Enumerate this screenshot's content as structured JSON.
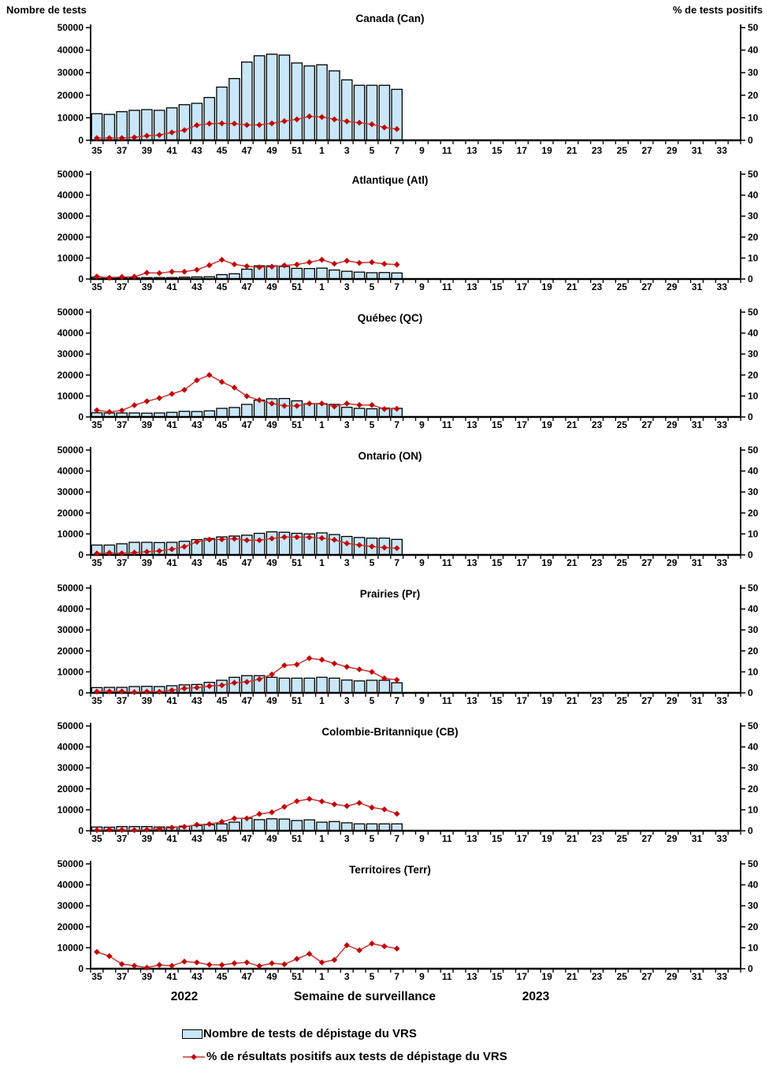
{
  "header": {
    "left_axis_title": "Nombre de tests",
    "right_axis_title": "% de tests positifs"
  },
  "footer": {
    "year_left": "2022",
    "x_axis_title": "Semaine de surveillance",
    "year_right": "2023"
  },
  "legend": {
    "tests_label": "Nombre de tests de dépistage du VRS",
    "pct_label": "% de résultats positifs aux tests de dépistage du VRS"
  },
  "colors": {
    "bar_fill": "#C9E7F8",
    "bar_stroke": "#000000",
    "line": "#CC3333",
    "marker": "#C00000",
    "axis": "#000000"
  },
  "chart_data": {
    "type": "bar+line",
    "x_categories": [
      35,
      36,
      37,
      38,
      39,
      40,
      41,
      42,
      43,
      44,
      45,
      46,
      47,
      48,
      49,
      50,
      51,
      52,
      1,
      2,
      3,
      4,
      5,
      6,
      7,
      8,
      9,
      10,
      11,
      12,
      13,
      14,
      15,
      16,
      17,
      18,
      19,
      20,
      21,
      22,
      23,
      24,
      25,
      26,
      27,
      28,
      29,
      30,
      31,
      32,
      33,
      34
    ],
    "x_tick_labels": [
      35,
      37,
      39,
      41,
      43,
      45,
      47,
      49,
      51,
      1,
      3,
      5,
      7,
      9,
      11,
      13,
      15,
      17,
      19,
      21,
      23,
      25,
      27,
      29,
      31,
      33
    ],
    "weeks_with_data": [
      35,
      36,
      37,
      38,
      39,
      40,
      41,
      42,
      43,
      44,
      45,
      46,
      47,
      48,
      49,
      50,
      51,
      52,
      1,
      2,
      3,
      4,
      5,
      6,
      7
    ],
    "left_axis": {
      "title": "Nombre de tests",
      "range": [
        0,
        50000
      ],
      "ticks": [
        0,
        10000,
        20000,
        30000,
        40000,
        50000
      ]
    },
    "right_axis": {
      "title": "% de tests positifs",
      "range": [
        0,
        50
      ],
      "ticks": [
        0,
        10,
        20,
        30,
        40,
        50
      ]
    },
    "grid": false,
    "legend_position": "bottom-left",
    "panels": [
      {
        "title": "Canada (Can)",
        "tests": [
          11800,
          11500,
          12700,
          13300,
          13600,
          13300,
          14400,
          15800,
          16400,
          19000,
          23600,
          27400,
          34700,
          37500,
          38200,
          37800,
          34300,
          33000,
          33500,
          30800,
          26800,
          24400,
          24400,
          24400,
          22600
        ],
        "pct_positive": [
          1.0,
          1.0,
          1.0,
          1.3,
          2.0,
          2.3,
          3.5,
          4.5,
          6.7,
          7.4,
          7.5,
          7.4,
          6.8,
          6.8,
          7.5,
          8.5,
          9.3,
          10.6,
          10.3,
          9.3,
          8.4,
          7.8,
          7.1,
          5.7,
          5.0
        ]
      },
      {
        "title": "Atlantique (Atl)",
        "tests": [
          900,
          800,
          600,
          600,
          700,
          700,
          700,
          900,
          1000,
          1100,
          2100,
          2500,
          4700,
          6300,
          6300,
          6000,
          5100,
          5000,
          5200,
          4300,
          3700,
          3300,
          3000,
          3100,
          2900
        ],
        "pct_positive": [
          1.2,
          0.6,
          1.0,
          1.1,
          3.0,
          2.8,
          3.5,
          3.5,
          4.4,
          6.6,
          9.2,
          7.0,
          6.1,
          5.6,
          5.9,
          6.5,
          6.9,
          8.0,
          9.2,
          7.3,
          8.7,
          7.7,
          8.0,
          7.2,
          6.9
        ]
      },
      {
        "title": "Québec (QC)",
        "tests": [
          2000,
          1900,
          1900,
          1900,
          1800,
          1900,
          2200,
          2700,
          2600,
          2900,
          4100,
          4500,
          6000,
          8000,
          8700,
          8800,
          7700,
          6300,
          6300,
          6000,
          4600,
          4100,
          3900,
          4200,
          4100
        ],
        "pct_positive": [
          3.2,
          2.4,
          3.1,
          5.6,
          7.5,
          9.0,
          11.0,
          12.9,
          17.5,
          20.0,
          16.7,
          14.0,
          9.9,
          8.0,
          6.4,
          5.3,
          5.3,
          6.4,
          6.4,
          5.0,
          6.4,
          5.7,
          5.7,
          3.8,
          3.9
        ]
      },
      {
        "title": "Ontario (ON)",
        "tests": [
          4700,
          4700,
          5300,
          6000,
          6000,
          5900,
          6000,
          6500,
          7300,
          7800,
          8600,
          9000,
          9400,
          10300,
          11000,
          10800,
          10300,
          10000,
          10500,
          9700,
          8800,
          8300,
          8000,
          8000,
          7400
        ],
        "pct_positive": [
          0.7,
          1.0,
          0.8,
          1.1,
          1.5,
          1.9,
          2.7,
          3.9,
          6.2,
          7.3,
          7.4,
          7.7,
          7.0,
          7.0,
          7.8,
          8.5,
          8.5,
          8.4,
          8.0,
          7.2,
          5.5,
          4.7,
          4.0,
          3.5,
          3.2
        ]
      },
      {
        "title": "Prairies (Pr)",
        "tests": [
          2500,
          2600,
          2600,
          3000,
          3100,
          3000,
          3400,
          3800,
          4000,
          5000,
          6000,
          7400,
          8200,
          8200,
          7400,
          7000,
          7000,
          7000,
          7400,
          7000,
          6100,
          5700,
          6000,
          6000,
          4800
        ],
        "pct_positive": [
          0.6,
          0.7,
          0.7,
          0.3,
          0.6,
          0.5,
          1.2,
          2.1,
          2.5,
          3.2,
          3.6,
          4.8,
          5.2,
          6.5,
          8.8,
          13.1,
          13.5,
          16.5,
          15.8,
          14.0,
          12.4,
          11.2,
          10.0,
          6.9,
          6.2
        ]
      },
      {
        "title": "Colombie-Britannique (CB)",
        "tests": [
          1800,
          1700,
          2000,
          2000,
          2000,
          1800,
          1800,
          2200,
          2500,
          2900,
          3300,
          4100,
          6000,
          5300,
          5700,
          5600,
          4900,
          5200,
          4100,
          4400,
          3800,
          3300,
          3300,
          3300,
          3300
        ],
        "pct_positive": [
          0.3,
          0.6,
          0.4,
          0.3,
          0.5,
          0.9,
          1.5,
          1.9,
          2.9,
          3.2,
          4.3,
          5.9,
          5.9,
          8.0,
          8.8,
          11.4,
          14.1,
          15.2,
          14.0,
          12.6,
          11.8,
          13.3,
          11.1,
          10.2,
          8.1
        ]
      },
      {
        "title": "Territoires (Terr)",
        "tests": [
          100,
          100,
          100,
          100,
          100,
          100,
          100,
          100,
          100,
          100,
          100,
          100,
          100,
          100,
          100,
          100,
          100,
          100,
          100,
          100,
          100,
          100,
          100,
          100,
          100
        ],
        "pct_positive": [
          8.0,
          6.0,
          2.2,
          1.4,
          0.5,
          1.8,
          1.4,
          3.4,
          3.0,
          1.9,
          1.8,
          2.6,
          3.0,
          1.3,
          2.6,
          2.1,
          4.7,
          7.1,
          3.0,
          4.2,
          11.2,
          8.8,
          12.0,
          10.7,
          9.6
        ]
      }
    ]
  }
}
